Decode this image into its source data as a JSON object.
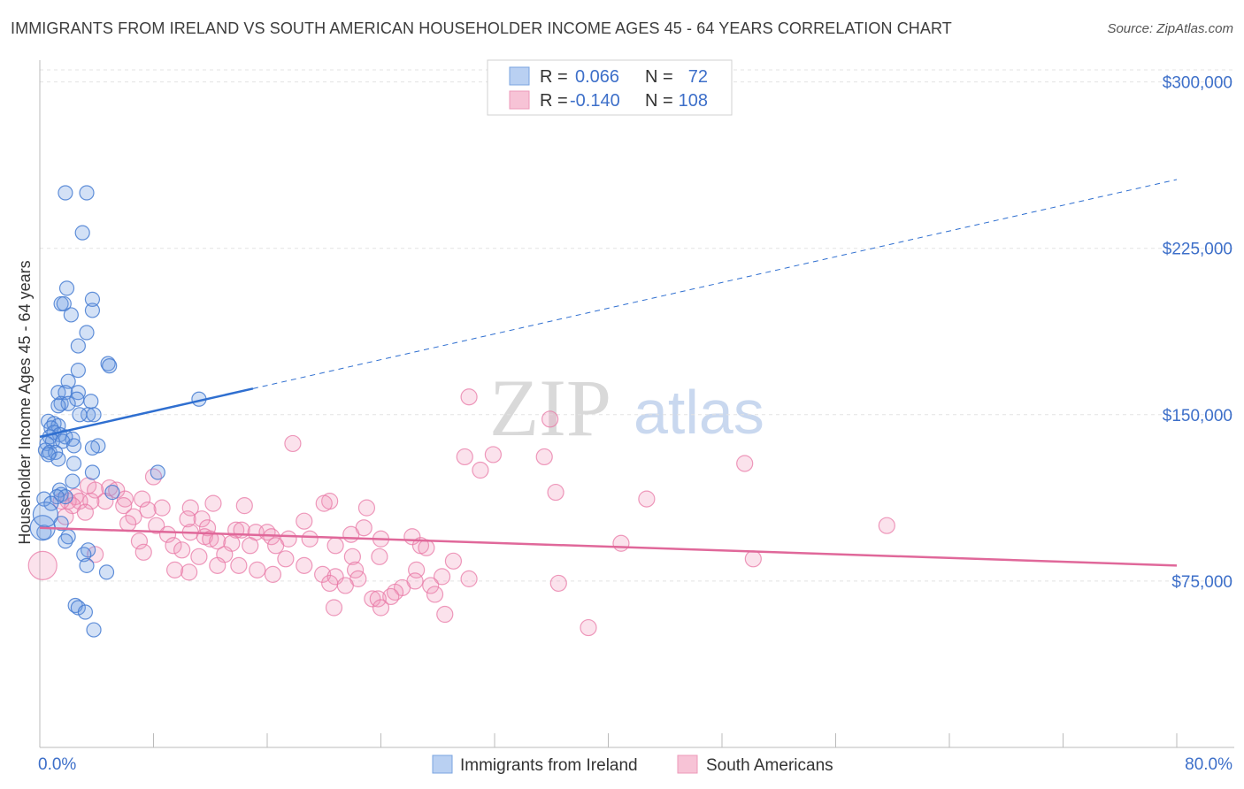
{
  "header": {
    "title": "IMMIGRANTS FROM IRELAND VS SOUTH AMERICAN HOUSEHOLDER INCOME AGES 45 - 64 YEARS CORRELATION CHART",
    "source": "Source: ZipAtlas.com"
  },
  "watermark": {
    "zip": "ZIP",
    "atlas": "atlas"
  },
  "legend": {
    "rows": [
      {
        "r_label": "R =",
        "r_value": "0.066",
        "n_label": "N =",
        "n_value": "72"
      },
      {
        "r_label": "R =",
        "r_value": "-0.140",
        "n_label": "N =",
        "n_value": "108"
      }
    ]
  },
  "bottom_legend": [
    "Immigrants from Ireland",
    "South Americans"
  ],
  "chart_data": {
    "type": "scatter",
    "title": "IMMIGRANTS FROM IRELAND VS SOUTH AMERICAN HOUSEHOLDER INCOME AGES 45 - 64 YEARS CORRELATION CHART",
    "xlabel": "",
    "ylabel": "Householder Income Ages 45 - 64 years",
    "xlim": [
      0,
      80
    ],
    "ylim": [
      0,
      315000
    ],
    "x_tick_labels": [
      "0.0%",
      "80.0%"
    ],
    "y_ticks": [
      75000,
      150000,
      225000,
      300000
    ],
    "y_tick_labels": [
      "$75,000",
      "$150,000",
      "$225,000",
      "$300,000"
    ],
    "grid": true,
    "colors": {
      "ireland": "#5b8fdc",
      "south_americans": "#e98ab0",
      "ireland_line": "#2f6fd0",
      "sa_line": "#e0689a"
    },
    "series": [
      {
        "name": "Immigrants from Ireland",
        "r": 0.066,
        "n": 72,
        "trend": {
          "x0": 0,
          "y0": 140000,
          "x_solid_end": 15,
          "x1": 80,
          "y1": 256000
        },
        "points": [
          [
            1.8,
            250000
          ],
          [
            3.3,
            250000
          ],
          [
            3.0,
            232000
          ],
          [
            1.9,
            207000
          ],
          [
            3.7,
            202000
          ],
          [
            1.5,
            200000
          ],
          [
            1.7,
            200000
          ],
          [
            3.7,
            197000
          ],
          [
            2.2,
            195000
          ],
          [
            3.3,
            187000
          ],
          [
            2.7,
            181000
          ],
          [
            4.8,
            173000
          ],
          [
            4.9,
            172000
          ],
          [
            2.7,
            170000
          ],
          [
            2.0,
            165000
          ],
          [
            1.3,
            160000
          ],
          [
            1.8,
            160000
          ],
          [
            2.7,
            160000
          ],
          [
            2.6,
            157000
          ],
          [
            11.2,
            157000
          ],
          [
            3.6,
            156000
          ],
          [
            1.5,
            155000
          ],
          [
            2.0,
            155000
          ],
          [
            1.3,
            154000
          ],
          [
            3.4,
            150000
          ],
          [
            2.8,
            150000
          ],
          [
            3.8,
            150000
          ],
          [
            0.6,
            147000
          ],
          [
            1.0,
            146000
          ],
          [
            1.3,
            145000
          ],
          [
            0.8,
            144000
          ],
          [
            1.0,
            142000
          ],
          [
            1.4,
            141000
          ],
          [
            0.7,
            140000
          ],
          [
            1.8,
            140000
          ],
          [
            2.3,
            139000
          ],
          [
            0.9,
            138000
          ],
          [
            1.6,
            138000
          ],
          [
            0.5,
            137000
          ],
          [
            2.4,
            136000
          ],
          [
            4.1,
            136000
          ],
          [
            3.7,
            135000
          ],
          [
            0.4,
            134000
          ],
          [
            0.7,
            133000
          ],
          [
            1.1,
            133000
          ],
          [
            0.6,
            132000
          ],
          [
            1.3,
            130000
          ],
          [
            2.4,
            128000
          ],
          [
            8.3,
            124000
          ],
          [
            3.7,
            124000
          ],
          [
            2.3,
            120000
          ],
          [
            1.4,
            116000
          ],
          [
            5.1,
            115000
          ],
          [
            1.5,
            114000
          ],
          [
            1.8,
            113000
          ],
          [
            1.2,
            113000
          ],
          [
            0.3,
            112000
          ],
          [
            0.8,
            110000
          ],
          [
            1.5,
            101000
          ],
          [
            0.3,
            97000
          ],
          [
            2.0,
            95000
          ],
          [
            1.8,
            93000
          ],
          [
            3.4,
            89000
          ],
          [
            3.1,
            87000
          ],
          [
            3.3,
            82000
          ],
          [
            4.7,
            79000
          ],
          [
            2.5,
            64000
          ],
          [
            2.7,
            63000
          ],
          [
            3.2,
            61000
          ],
          [
            3.8,
            53000
          ],
          [
            0.2,
            99000
          ],
          [
            0.4,
            105000
          ]
        ]
      },
      {
        "name": "South Americans",
        "r": -0.14,
        "n": 108,
        "trend": {
          "x0": 0,
          "y0": 99000,
          "x1": 80,
          "y1": 82000
        },
        "points": [
          [
            30.2,
            158000
          ],
          [
            35.9,
            148000
          ],
          [
            17.8,
            137000
          ],
          [
            35.5,
            131000
          ],
          [
            29.9,
            131000
          ],
          [
            31.9,
            132000
          ],
          [
            31.0,
            125000
          ],
          [
            49.6,
            128000
          ],
          [
            8.0,
            122000
          ],
          [
            36.3,
            115000
          ],
          [
            4.9,
            117000
          ],
          [
            3.4,
            118000
          ],
          [
            3.9,
            116000
          ],
          [
            42.7,
            112000
          ],
          [
            2.5,
            113000
          ],
          [
            5.4,
            116000
          ],
          [
            6.0,
            112000
          ],
          [
            7.2,
            112000
          ],
          [
            4.6,
            111000
          ],
          [
            3.6,
            111000
          ],
          [
            2.8,
            111000
          ],
          [
            2.0,
            111000
          ],
          [
            1.5,
            111000
          ],
          [
            20.4,
            111000
          ],
          [
            12.2,
            110000
          ],
          [
            14.4,
            109000
          ],
          [
            20.0,
            110000
          ],
          [
            2.3,
            109000
          ],
          [
            5.9,
            109000
          ],
          [
            8.6,
            108000
          ],
          [
            10.6,
            108000
          ],
          [
            23.0,
            108000
          ],
          [
            7.6,
            107000
          ],
          [
            3.2,
            106000
          ],
          [
            1.8,
            104000
          ],
          [
            6.6,
            104000
          ],
          [
            11.4,
            103000
          ],
          [
            10.4,
            103000
          ],
          [
            18.6,
            102000
          ],
          [
            6.2,
            101000
          ],
          [
            59.6,
            100000
          ],
          [
            8.2,
            100000
          ],
          [
            11.8,
            99000
          ],
          [
            22.8,
            99000
          ],
          [
            13.8,
            98000
          ],
          [
            14.2,
            98000
          ],
          [
            10.6,
            97000
          ],
          [
            15.2,
            97000
          ],
          [
            16.0,
            97000
          ],
          [
            21.9,
            96000
          ],
          [
            9.0,
            96000
          ],
          [
            26.2,
            95000
          ],
          [
            16.3,
            95000
          ],
          [
            11.6,
            95000
          ],
          [
            12.0,
            94000
          ],
          [
            17.5,
            94000
          ],
          [
            19.0,
            94000
          ],
          [
            24.0,
            94000
          ],
          [
            7.0,
            93000
          ],
          [
            12.5,
            93000
          ],
          [
            13.5,
            92000
          ],
          [
            9.4,
            91000
          ],
          [
            14.8,
            91000
          ],
          [
            16.6,
            91000
          ],
          [
            20.8,
            91000
          ],
          [
            26.8,
            91000
          ],
          [
            40.9,
            92000
          ],
          [
            27.2,
            90000
          ],
          [
            10.0,
            89000
          ],
          [
            7.3,
            88000
          ],
          [
            13.0,
            87000
          ],
          [
            3.9,
            87000
          ],
          [
            22.0,
            86000
          ],
          [
            17.3,
            85000
          ],
          [
            11.2,
            86000
          ],
          [
            50.2,
            85000
          ],
          [
            23.9,
            86000
          ],
          [
            29.1,
            84000
          ],
          [
            12.5,
            82000
          ],
          [
            14.0,
            82000
          ],
          [
            18.6,
            82000
          ],
          [
            15.3,
            80000
          ],
          [
            22.2,
            80000
          ],
          [
            26.5,
            80000
          ],
          [
            16.4,
            78000
          ],
          [
            9.5,
            80000
          ],
          [
            10.5,
            79000
          ],
          [
            19.9,
            78000
          ],
          [
            28.3,
            77000
          ],
          [
            30.2,
            76000
          ],
          [
            20.8,
            77000
          ],
          [
            22.4,
            76000
          ],
          [
            26.4,
            75000
          ],
          [
            27.5,
            73000
          ],
          [
            36.5,
            74000
          ],
          [
            20.4,
            74000
          ],
          [
            21.5,
            73000
          ],
          [
            25.5,
            72000
          ],
          [
            25.0,
            70000
          ],
          [
            27.8,
            69000
          ],
          [
            24.7,
            68000
          ],
          [
            23.4,
            67000
          ],
          [
            23.8,
            67000
          ],
          [
            20.7,
            63000
          ],
          [
            24.0,
            63000
          ],
          [
            28.5,
            60000
          ],
          [
            38.6,
            54000
          ],
          [
            0.2,
            82000
          ]
        ]
      }
    ]
  }
}
